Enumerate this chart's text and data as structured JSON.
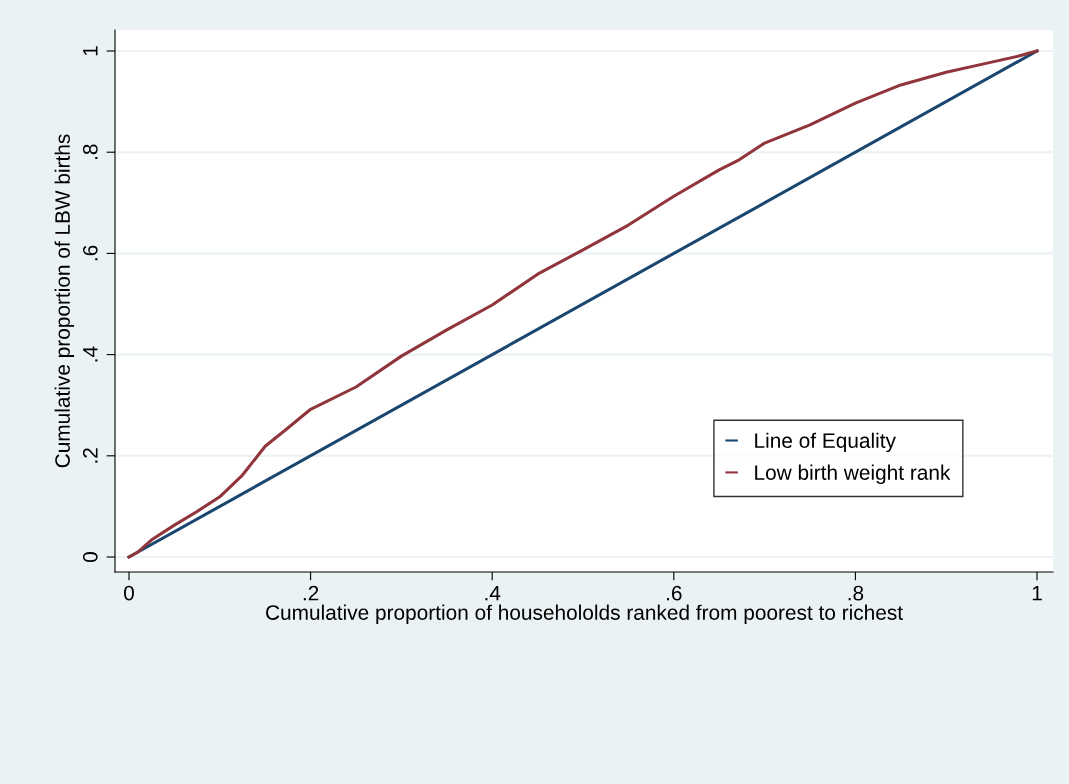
{
  "chart_data": {
    "type": "line",
    "xlabel": "Cumulative proportion of househololds ranked from poorest to richest",
    "ylabel": "Cumulative proportion of LBW births",
    "series": [
      {
        "name": "Line of Equality",
        "color": "#1a476f",
        "x": [
          0,
          1
        ],
        "values": [
          0,
          1
        ]
      },
      {
        "name": "Low birth weight rank",
        "color": "#90353b",
        "x": [
          0,
          0.01,
          0.025,
          0.05,
          0.075,
          0.1,
          0.125,
          0.15,
          0.175,
          0.2,
          0.25,
          0.3,
          0.35,
          0.4,
          0.45,
          0.5,
          0.55,
          0.6,
          0.65,
          0.672,
          0.7,
          0.75,
          0.8,
          0.85,
          0.9,
          0.95,
          0.98,
          1
        ],
        "values": [
          0,
          0.01,
          0.034,
          0.063,
          0.09,
          0.119,
          0.162,
          0.219,
          0.255,
          0.292,
          0.336,
          0.397,
          0.449,
          0.498,
          0.559,
          0.607,
          0.656,
          0.713,
          0.765,
          0.785,
          0.818,
          0.854,
          0.897,
          0.933,
          0.958,
          0.978,
          0.99,
          1
        ]
      }
    ],
    "xlim": [
      -0.0154,
      1.0176
    ],
    "ylim": [
      -0.0296,
      1.0415
    ],
    "xticks": [
      0,
      {
        "value": 0.2,
        "label": ".2"
      },
      {
        "value": 0.4,
        "label": ".4"
      },
      {
        "value": 0.6,
        "label": ".6"
      },
      {
        "value": 0.8,
        "label": ".8"
      },
      1
    ],
    "yticks": [
      0,
      {
        "value": 0.2,
        "label": ".2"
      },
      {
        "value": 0.4,
        "label": ".4"
      },
      {
        "value": 0.6,
        "label": ".6"
      },
      {
        "value": 0.8,
        "label": ".8"
      },
      1
    ],
    "grid": "y",
    "legend": "bottom right",
    "marker": "none",
    "line_style": "solid"
  }
}
